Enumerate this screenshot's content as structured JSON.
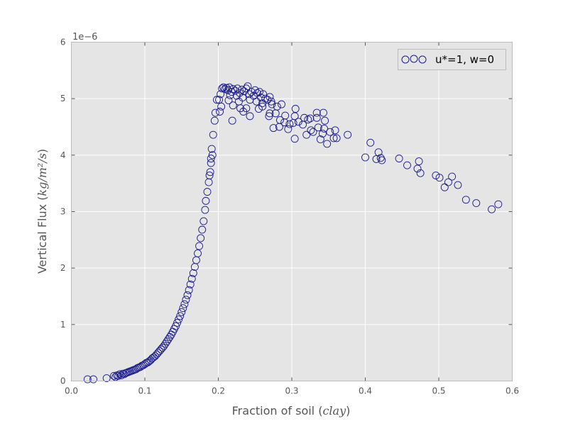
{
  "chart_data": {
    "type": "scatter",
    "title": "",
    "xlabel": "Fraction of soil",
    "xlabel_math": "clay",
    "ylabel": "Vertical Flux",
    "ylabel_math": "kg/m²/s",
    "y_offset_text": "1e−6",
    "xlim": [
      0,
      0.6
    ],
    "ylim": [
      0,
      6
    ],
    "y_scale_factor": 1e-06,
    "xticks": [
      "0.0",
      "0.1",
      "0.2",
      "0.3",
      "0.4",
      "0.5",
      "0.6"
    ],
    "yticks": [
      "0",
      "1",
      "2",
      "3",
      "4",
      "5",
      "6"
    ],
    "grid": true,
    "legend_position": "top-right",
    "marker_color": "#1a1a8c",
    "background_color": "#e5e5e5",
    "series": [
      {
        "name": "u*=1, w=0",
        "marker": "open-circle",
        "points": [
          [
            0.022,
            0.03
          ],
          [
            0.03,
            0.03
          ],
          [
            0.048,
            0.05
          ],
          [
            0.058,
            0.09
          ],
          [
            0.06,
            0.07
          ],
          [
            0.062,
            0.1
          ],
          [
            0.064,
            0.09
          ],
          [
            0.066,
            0.12
          ],
          [
            0.068,
            0.1
          ],
          [
            0.07,
            0.13
          ],
          [
            0.072,
            0.12
          ],
          [
            0.074,
            0.14
          ],
          [
            0.076,
            0.15
          ],
          [
            0.078,
            0.16
          ],
          [
            0.08,
            0.17
          ],
          [
            0.082,
            0.18
          ],
          [
            0.084,
            0.19
          ],
          [
            0.086,
            0.2
          ],
          [
            0.088,
            0.21
          ],
          [
            0.09,
            0.23
          ],
          [
            0.092,
            0.24
          ],
          [
            0.094,
            0.25
          ],
          [
            0.096,
            0.27
          ],
          [
            0.098,
            0.28
          ],
          [
            0.1,
            0.3
          ],
          [
            0.102,
            0.32
          ],
          [
            0.104,
            0.33
          ],
          [
            0.106,
            0.35
          ],
          [
            0.108,
            0.37
          ],
          [
            0.11,
            0.4
          ],
          [
            0.112,
            0.42
          ],
          [
            0.114,
            0.44
          ],
          [
            0.116,
            0.47
          ],
          [
            0.118,
            0.5
          ],
          [
            0.12,
            0.53
          ],
          [
            0.122,
            0.56
          ],
          [
            0.124,
            0.59
          ],
          [
            0.126,
            0.62
          ],
          [
            0.128,
            0.66
          ],
          [
            0.13,
            0.7
          ],
          [
            0.132,
            0.74
          ],
          [
            0.134,
            0.78
          ],
          [
            0.136,
            0.82
          ],
          [
            0.138,
            0.87
          ],
          [
            0.14,
            0.92
          ],
          [
            0.142,
            0.97
          ],
          [
            0.144,
            1.03
          ],
          [
            0.146,
            1.09
          ],
          [
            0.148,
            1.15
          ],
          [
            0.15,
            1.22
          ],
          [
            0.152,
            1.29
          ],
          [
            0.154,
            1.36
          ],
          [
            0.156,
            1.44
          ],
          [
            0.158,
            1.52
          ],
          [
            0.16,
            1.61
          ],
          [
            0.162,
            1.71
          ],
          [
            0.164,
            1.81
          ],
          [
            0.166,
            1.91
          ],
          [
            0.168,
            2.02
          ],
          [
            0.17,
            2.14
          ],
          [
            0.172,
            2.26
          ],
          [
            0.174,
            2.39
          ],
          [
            0.176,
            2.53
          ],
          [
            0.178,
            2.68
          ],
          [
            0.18,
            2.83
          ],
          [
            0.182,
            3.03
          ],
          [
            0.183,
            3.19
          ],
          [
            0.185,
            3.35
          ],
          [
            0.187,
            3.52
          ],
          [
            0.188,
            3.64
          ],
          [
            0.189,
            3.7
          ],
          [
            0.19,
            3.86
          ],
          [
            0.19,
            3.94
          ],
          [
            0.191,
            4.11
          ],
          [
            0.192,
            4.0
          ],
          [
            0.193,
            4.36
          ],
          [
            0.195,
            4.61
          ],
          [
            0.196,
            4.75
          ],
          [
            0.198,
            4.98
          ],
          [
            0.201,
            4.98
          ],
          [
            0.202,
            4.77
          ],
          [
            0.203,
            5.08
          ],
          [
            0.204,
            4.86
          ],
          [
            0.205,
            5.18
          ],
          [
            0.207,
            5.2
          ],
          [
            0.209,
            5.17
          ],
          [
            0.211,
            5.19
          ],
          [
            0.213,
            5.15
          ],
          [
            0.214,
            4.97
          ],
          [
            0.215,
            5.2
          ],
          [
            0.216,
            5.06
          ],
          [
            0.218,
            5.12
          ],
          [
            0.219,
            4.61
          ],
          [
            0.22,
            5.17
          ],
          [
            0.22,
            4.88
          ],
          [
            0.223,
            5.14
          ],
          [
            0.225,
            5.05
          ],
          [
            0.226,
            5.18
          ],
          [
            0.228,
            4.95
          ],
          [
            0.229,
            5.1
          ],
          [
            0.23,
            4.83
          ],
          [
            0.232,
            5.16
          ],
          [
            0.233,
            5.02
          ],
          [
            0.234,
            4.77
          ],
          [
            0.235,
            5.13
          ],
          [
            0.238,
            5.18
          ],
          [
            0.238,
            4.83
          ],
          [
            0.24,
            5.22
          ],
          [
            0.242,
            5.08
          ],
          [
            0.243,
            4.98
          ],
          [
            0.243,
            4.69
          ],
          [
            0.245,
            5.12
          ],
          [
            0.248,
            5.05
          ],
          [
            0.25,
            5.15
          ],
          [
            0.252,
            4.95
          ],
          [
            0.253,
            5.1
          ],
          [
            0.255,
            4.82
          ],
          [
            0.256,
            5.12
          ],
          [
            0.258,
            5.02
          ],
          [
            0.26,
            4.92
          ],
          [
            0.26,
            4.86
          ],
          [
            0.261,
            5.08
          ],
          [
            0.264,
            5.0
          ],
          [
            0.267,
            4.98
          ],
          [
            0.269,
            4.69
          ],
          [
            0.27,
            5.03
          ],
          [
            0.27,
            4.74
          ],
          [
            0.272,
            4.95
          ],
          [
            0.273,
            4.9
          ],
          [
            0.275,
            4.48
          ],
          [
            0.278,
            4.74
          ],
          [
            0.28,
            4.86
          ],
          [
            0.283,
            4.5
          ],
          [
            0.284,
            4.62
          ],
          [
            0.286,
            4.9
          ],
          [
            0.29,
            4.58
          ],
          [
            0.291,
            4.7
          ],
          [
            0.295,
            4.46
          ],
          [
            0.297,
            4.55
          ],
          [
            0.302,
            4.57
          ],
          [
            0.304,
            4.29
          ],
          [
            0.304,
            4.69
          ],
          [
            0.305,
            4.82
          ],
          [
            0.309,
            4.59
          ],
          [
            0.315,
            4.54
          ],
          [
            0.317,
            4.66
          ],
          [
            0.32,
            4.36
          ],
          [
            0.322,
            4.63
          ],
          [
            0.325,
            4.65
          ],
          [
            0.326,
            4.44
          ],
          [
            0.329,
            4.41
          ],
          [
            0.334,
            4.75
          ],
          [
            0.334,
            4.66
          ],
          [
            0.336,
            4.49
          ],
          [
            0.339,
            4.28
          ],
          [
            0.342,
            4.38
          ],
          [
            0.343,
            4.75
          ],
          [
            0.344,
            4.47
          ],
          [
            0.345,
            4.61
          ],
          [
            0.348,
            4.2
          ],
          [
            0.352,
            4.41
          ],
          [
            0.357,
            4.3
          ],
          [
            0.359,
            4.44
          ],
          [
            0.361,
            4.3
          ],
          [
            0.376,
            4.36
          ],
          [
            0.4,
            3.96
          ],
          [
            0.407,
            4.22
          ],
          [
            0.415,
            3.93
          ],
          [
            0.418,
            4.05
          ],
          [
            0.421,
            3.95
          ],
          [
            0.4225,
            3.91
          ],
          [
            0.446,
            3.94
          ],
          [
            0.457,
            3.82
          ],
          [
            0.471,
            3.76
          ],
          [
            0.473,
            3.89
          ],
          [
            0.475,
            3.68
          ],
          [
            0.496,
            3.64
          ],
          [
            0.501,
            3.6
          ],
          [
            0.508,
            3.43
          ],
          [
            0.513,
            3.52
          ],
          [
            0.518,
            3.62
          ],
          [
            0.526,
            3.47
          ],
          [
            0.537,
            3.21
          ],
          [
            0.551,
            3.15
          ],
          [
            0.572,
            3.04
          ],
          [
            0.581,
            3.13
          ]
        ]
      }
    ]
  }
}
